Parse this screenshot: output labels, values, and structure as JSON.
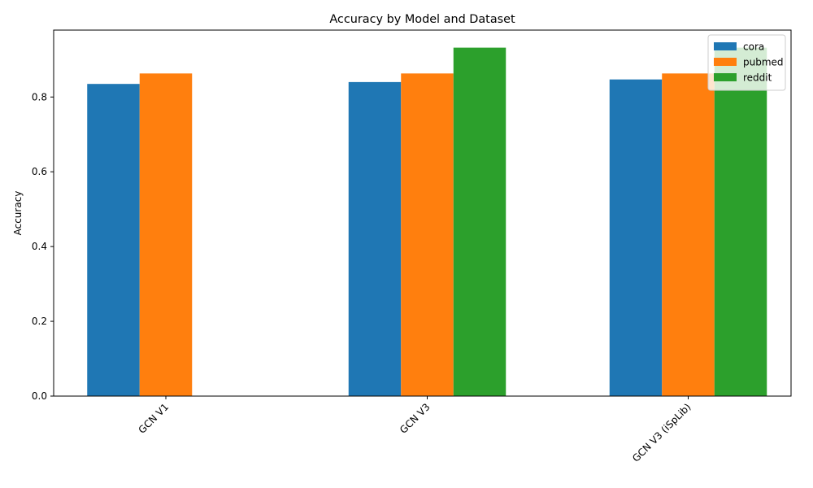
{
  "chart_data": {
    "type": "bar",
    "title": "Accuracy by Model and Dataset",
    "xlabel": "",
    "ylabel": "Accuracy",
    "categories": [
      "GCN V1",
      "GCN V3",
      "GCN V3 (iSpLib)"
    ],
    "series": [
      {
        "name": "cora",
        "color": "#1f77b4",
        "values": [
          0.835,
          0.84,
          0.847
        ]
      },
      {
        "name": "pubmed",
        "color": "#ff7f0e",
        "values": [
          0.863,
          0.863,
          0.863
        ]
      },
      {
        "name": "reddit",
        "color": "#2ca02c",
        "values": [
          null,
          0.932,
          0.932
        ]
      }
    ],
    "ylim": [
      0,
      0.979
    ],
    "yticks": [
      0.0,
      0.2,
      0.4,
      0.6,
      0.8
    ],
    "ytick_labels": [
      "0.0",
      "0.2",
      "0.4",
      "0.6",
      "0.8"
    ],
    "legend_position": "top-right",
    "grid": false,
    "xtick_rotation": 45
  }
}
